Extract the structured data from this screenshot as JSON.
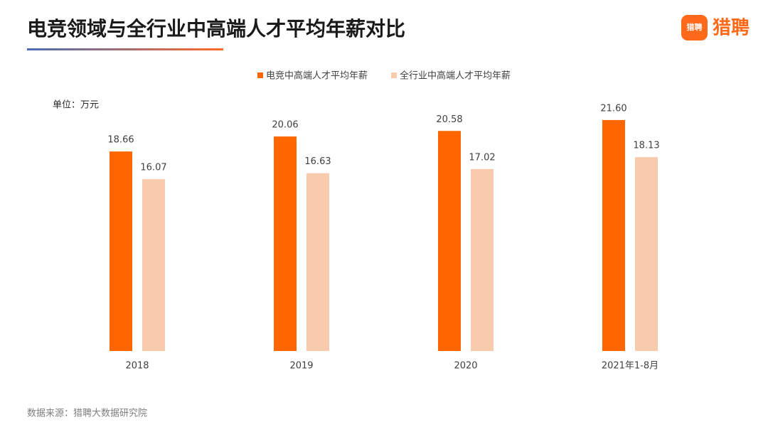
{
  "chart_data": {
    "type": "bar",
    "title": "电竞领域与全行业中高端人才平均年薪对比",
    "brand": "猎聘",
    "unit_label": "单位：万元",
    "source": "数据来源：猎聘大数据研究院",
    "categories": [
      "2018",
      "2019",
      "2020",
      "2021年1-8月"
    ],
    "series": [
      {
        "name": "电竞中高端人才平均年薪",
        "color": "#ff6600",
        "values": [
          18.66,
          20.06,
          20.58,
          21.6
        ],
        "value_labels": [
          "18.66",
          "20.06",
          "20.58",
          "21.60"
        ]
      },
      {
        "name": "全行业中高端人才平均年薪",
        "color": "#f8cbad",
        "values": [
          16.07,
          16.63,
          17.02,
          18.13
        ],
        "value_labels": [
          "16.07",
          "16.63",
          "17.02",
          "18.13"
        ]
      }
    ],
    "legend": "top"
  }
}
